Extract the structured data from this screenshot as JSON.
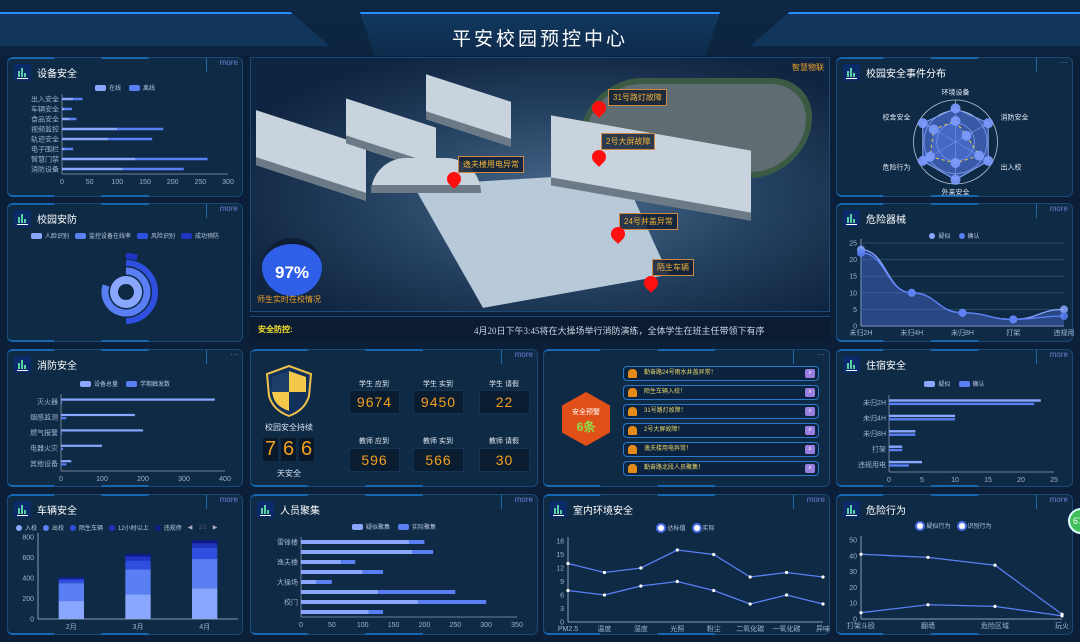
{
  "header": {
    "title": "平安校园预控中心"
  },
  "more_label": "more",
  "colors": {
    "light": "#8aa7ff",
    "mid": "#5a7ff5",
    "deep": "#2f4fe0",
    "darker": "#1f34c0",
    "darkest": "#0d1a8a",
    "accent": "#f3a01e",
    "alarm": "#ff1010"
  },
  "equipment": {
    "title": "设备安全",
    "legend": [
      "在线",
      "离线"
    ],
    "chart_data": {
      "type": "bar",
      "orientation": "horizontal",
      "stacked": true,
      "categories": [
        "出入安全",
        "车辆安全",
        "食品安全",
        "视频监控",
        "轨迹安全",
        "电子围栏",
        "智慧门禁",
        "消防设备"
      ],
      "series": [
        {
          "name": "在线",
          "values": [
            20,
            5,
            14,
            100,
            83,
            5,
            133,
            110
          ]
        },
        {
          "name": "离线",
          "values": [
            17,
            13,
            12,
            83,
            80,
            15,
            130,
            110
          ]
        }
      ],
      "xlim": [
        0,
        300
      ],
      "ticks": [
        0,
        50,
        100,
        150,
        200,
        250,
        300
      ]
    }
  },
  "campus_defense": {
    "title": "校园安防",
    "legend": [
      "人脸识别",
      "监控设备在线率",
      "风险识别",
      "成功预防"
    ],
    "chart_data": {
      "type": "radial-bar",
      "percent": [
        100,
        80,
        50,
        5
      ]
    }
  },
  "fire": {
    "title": "消防安全",
    "legend": [
      "设备总量",
      "学期触发数"
    ],
    "chart_data": {
      "type": "bar",
      "orientation": "horizontal",
      "categories": [
        "灭火器",
        "烟感监测",
        "燃气报警",
        "电器火灾",
        "其他设备"
      ],
      "series": [
        {
          "name": "设备总量",
          "values": [
            375,
            180,
            200,
            100,
            25
          ]
        },
        {
          "name": "学期触发数",
          "values": [
            3,
            13,
            2,
            5,
            13
          ]
        }
      ],
      "xlim": [
        0,
        400
      ],
      "ticks": [
        0,
        100,
        200,
        300,
        400
      ]
    }
  },
  "vehicle": {
    "title": "车辆安全",
    "legend": [
      "入校",
      "出校",
      "陌生车辆",
      "12小时以上",
      "违规停"
    ],
    "legend_page": "1/2",
    "chart_data": {
      "type": "bar",
      "stacked": true,
      "categories": [
        "2月",
        "3月",
        "4月"
      ],
      "series": [
        {
          "name": "入校",
          "values": [
            175,
            240,
            300
          ]
        },
        {
          "name": "出校",
          "values": [
            175,
            245,
            285
          ]
        },
        {
          "name": "陌生车辆",
          "values": [
            30,
            85,
            110
          ]
        },
        {
          "name": "12小时以上",
          "values": [
            15,
            40,
            45
          ]
        },
        {
          "name": "违规停",
          "values": [
            10,
            25,
            30
          ]
        }
      ],
      "ylim": [
        0,
        800
      ],
      "ticks": [
        0,
        200,
        400,
        600,
        800
      ]
    }
  },
  "map": {
    "corner_label": "智慧物联",
    "markers": [
      "31号路灯故障",
      "2号大屏故障",
      "逸夫楼用电异常",
      "24号井盖异常",
      "陌生车辆"
    ],
    "presence_percent": "97%",
    "presence_label": "师生实时在校情况"
  },
  "ticker": {
    "label": "安全防控:",
    "text": "4月20日下午3:45将在大操场举行消防演练，全体学生在班主任带领下有序"
  },
  "attendance": {
    "safe_label": "校园安全持续",
    "safe_days": [
      "7",
      "6",
      "6"
    ],
    "days_unit": "天安全",
    "stats": [
      {
        "label": "学生  应到",
        "value": "9674"
      },
      {
        "label": "学生  实到",
        "value": "9450"
      },
      {
        "label": "学生  请假",
        "value": "22"
      },
      {
        "label": "教师  应到",
        "value": "596"
      },
      {
        "label": "教师  实到",
        "value": "566"
      },
      {
        "label": "教师  请假",
        "value": "30"
      }
    ]
  },
  "warnings": {
    "badge_label": "安全预警",
    "badge_count": "6条",
    "items": [
      "勤奋路24号雨水井盖异常！",
      "陌生车辆入校！",
      "31号路灯故障！",
      "2号大屏故障！",
      "逸夫楼用电异常！",
      "勤奋路北段人员聚集！"
    ]
  },
  "crowd": {
    "title": "人员聚集",
    "legend": [
      "疑似聚集",
      "实际聚集"
    ],
    "chart_data": {
      "type": "bar",
      "orientation": "horizontal",
      "stacked": true,
      "categories": [
        "雷锋楼",
        "",
        "逸夫楼",
        "",
        "大操场",
        "",
        "校门",
        ""
      ],
      "series": [
        {
          "name": "疑似聚集",
          "values": [
            175,
            180,
            65,
            100,
            25,
            125,
            190,
            110
          ]
        },
        {
          "name": "实际聚集",
          "values": [
            25,
            34,
            23,
            33,
            25,
            125,
            110,
            23
          ]
        }
      ],
      "xlim": [
        0,
        350
      ],
      "ticks": [
        0,
        50,
        100,
        150,
        200,
        250,
        300,
        350
      ]
    }
  },
  "indoor": {
    "title": "室内环境安全",
    "legend": [
      "达标值",
      "实际"
    ],
    "chart_data": {
      "type": "line",
      "categories": [
        "PM2.5",
        "温度",
        "湿度",
        "光照",
        "粉尘",
        "二氧化碳",
        "一氧化碳",
        "异味"
      ],
      "series": [
        {
          "name": "达标值",
          "values": [
            13,
            11,
            12,
            16,
            15,
            10,
            11,
            10
          ]
        },
        {
          "name": "实际",
          "values": [
            7,
            6,
            8,
            9,
            7,
            4,
            6,
            4
          ]
        }
      ],
      "ylim": [
        0,
        18
      ],
      "ticks": [
        0,
        3,
        6,
        9,
        12,
        15,
        18
      ]
    }
  },
  "events": {
    "title": "校园安全事件分布",
    "chart_data": {
      "type": "radar",
      "indicators": [
        "环境设备",
        "消防安全",
        "出入校",
        "外来安全",
        "危险行为",
        "校舍安全"
      ],
      "max": 100,
      "series": [
        {
          "values": [
            80,
            90,
            90,
            90,
            90,
            90
          ]
        },
        {
          "values": [
            50,
            30,
            65,
            50,
            70,
            60
          ]
        }
      ]
    }
  },
  "weapons": {
    "title": "危险器械",
    "legend": [
      "疑似",
      "确认"
    ],
    "chart_data": {
      "type": "area",
      "categories": [
        "未归2H",
        "未归4H",
        "未归8H",
        "打架",
        "违规用"
      ],
      "series": [
        {
          "name": "疑似",
          "values": [
            23,
            10,
            4,
            2,
            5
          ]
        },
        {
          "name": "确认",
          "values": [
            22,
            10,
            4,
            2,
            3
          ]
        }
      ],
      "ylim": [
        0,
        25
      ],
      "ticks": [
        0,
        5,
        10,
        15,
        20,
        25
      ]
    }
  },
  "dorm": {
    "title": "住宿安全",
    "legend": [
      "疑似",
      "确认"
    ],
    "chart_data": {
      "type": "bar",
      "orientation": "horizontal",
      "categories": [
        "未归2H",
        "未归4H",
        "未归8H",
        "打架",
        "违规用电"
      ],
      "series": [
        {
          "name": "疑似",
          "values": [
            23,
            10,
            4,
            2,
            5
          ]
        },
        {
          "name": "确认",
          "values": [
            22,
            10,
            4,
            2,
            3
          ]
        }
      ],
      "xlim": [
        0,
        25
      ],
      "ticks": [
        0,
        5,
        10,
        15,
        20,
        25
      ]
    }
  },
  "behavior": {
    "title": "危险行为",
    "legend": [
      "疑似行为",
      "识别行为"
    ],
    "chart_data": {
      "type": "line",
      "categories": [
        "打架斗殴",
        "翻墙",
        "危险区域",
        "玩火"
      ],
      "series": [
        {
          "name": "疑似行为",
          "values": [
            41,
            39,
            34,
            3
          ]
        },
        {
          "name": "识别行为",
          "values": [
            4,
            9,
            8,
            2
          ]
        }
      ],
      "ylim": [
        0,
        50
      ],
      "ticks": [
        0,
        10,
        20,
        30,
        40,
        50
      ]
    }
  },
  "floating_badge": "67"
}
